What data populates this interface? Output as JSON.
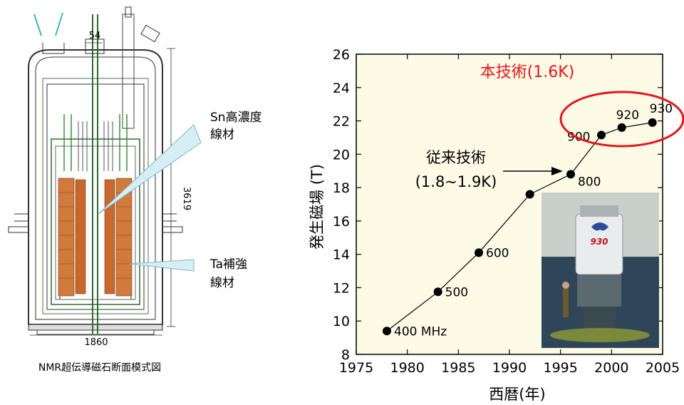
{
  "diagram": {
    "caption": "NMR超伝導磁石断面模式図",
    "dim_top": "54",
    "dim_height": "3619",
    "dim_width": "1860",
    "callout_sn": [
      "Sn高濃度",
      "線材"
    ],
    "callout_ta": [
      "Ta補強",
      "線材"
    ]
  },
  "chart_data": {
    "type": "line",
    "xlabel": "西暦(年)",
    "ylabel": "発生磁場 (T)",
    "xlim": [
      1975,
      2005
    ],
    "ylim": [
      8,
      26
    ],
    "xticks": [
      1975,
      1980,
      1985,
      1990,
      1995,
      2000,
      2005
    ],
    "yticks": [
      8,
      10,
      12,
      14,
      16,
      18,
      20,
      22,
      24,
      26
    ],
    "points": [
      {
        "x": 1978,
        "y": 9.4,
        "label": "400 MHz"
      },
      {
        "x": 1983,
        "y": 11.75,
        "label": "500"
      },
      {
        "x": 1987,
        "y": 14.1,
        "label": "600"
      },
      {
        "x": 1992,
        "y": 17.6,
        "label": ""
      },
      {
        "x": 1996,
        "y": 18.8,
        "label": "800"
      },
      {
        "x": 1999,
        "y": 21.15,
        "label": "900"
      },
      {
        "x": 2001,
        "y": 21.6,
        "label": "920"
      },
      {
        "x": 2004,
        "y": 21.9,
        "label": "930"
      }
    ],
    "annotations": {
      "new_tech": "本技術(1.6K)",
      "old_tech_line1": "従来技術",
      "old_tech_line2": "(1.8~1.9K)"
    },
    "inset_badge": "930",
    "colors": {
      "plot_bg": "#fdfbe6",
      "highlight": "#e8141c",
      "line": "#000000"
    }
  }
}
